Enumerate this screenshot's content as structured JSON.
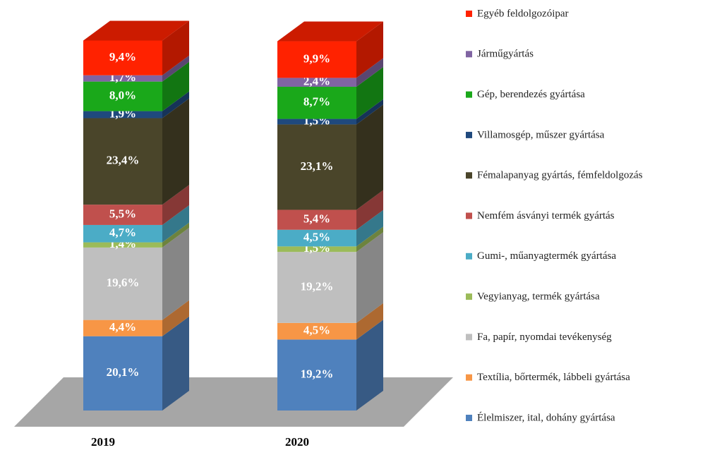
{
  "chart_data": {
    "type": "bar3d_stacked",
    "categories": [
      "2019",
      "2020"
    ],
    "ylim": [
      0,
      100
    ],
    "legend": "right",
    "series": [
      {
        "name": "Élelmiszer, ital, dohány gyártása",
        "color": "#4f81bd",
        "values": [
          20.1,
          19.2
        ],
        "value_labels": [
          "20,1%",
          "19,2%"
        ]
      },
      {
        "name": "Textília, bőrtermék, lábbeli gyártása",
        "color": "#f79646",
        "values": [
          4.4,
          4.5
        ],
        "value_labels": [
          "4,4%",
          "4,5%"
        ]
      },
      {
        "name": "Fa, papír, nyomdai tevékenység",
        "color": "#bfbfbf",
        "values": [
          19.6,
          19.2
        ],
        "value_labels": [
          "19,6%",
          "19,2%"
        ]
      },
      {
        "name": "Vegyianyag, termék gyártása",
        "color": "#9bbb59",
        "values": [
          1.4,
          1.5
        ],
        "value_labels": [
          "1,4%",
          "1,5%"
        ]
      },
      {
        "name": "Gumi-, műanyagtermék gyártása",
        "color": "#4bacc6",
        "values": [
          4.7,
          4.5
        ],
        "value_labels": [
          "4,7%",
          "4,5%"
        ]
      },
      {
        "name": "Nemfém ásványi termék gyártás",
        "color": "#c0504d",
        "values": [
          5.5,
          5.4
        ],
        "value_labels": [
          "5,5%",
          "5,4%"
        ]
      },
      {
        "name": "Fémalapanyag gyártás, fémfeldolgozás",
        "color": "#4a452a",
        "values": [
          23.4,
          23.1
        ],
        "value_labels": [
          "23,4%",
          "23,1%"
        ]
      },
      {
        "name": "Villamosgép, műszer gyártása",
        "color": "#1f497d",
        "values": [
          1.9,
          1.5
        ],
        "value_labels": [
          "1,9%",
          "1,5%"
        ]
      },
      {
        "name": "Gép, berendezés gyártása",
        "color": "#1aa81a",
        "values": [
          8.0,
          8.7
        ],
        "value_labels": [
          "8,0%",
          "8,7%"
        ]
      },
      {
        "name": "Járműgyártás",
        "color": "#8064a2",
        "values": [
          1.7,
          2.4
        ],
        "value_labels": [
          "1,7%",
          "2,4%"
        ]
      },
      {
        "name": "Egyéb feldolgozóipar",
        "color": "#ff2200",
        "values": [
          9.4,
          9.9
        ],
        "value_labels": [
          "9,4%",
          "9,9%"
        ]
      }
    ]
  }
}
